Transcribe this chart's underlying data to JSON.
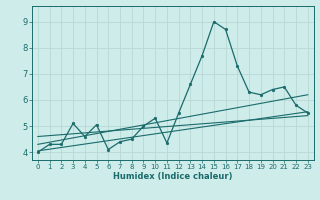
{
  "xlabel": "Humidex (Indice chaleur)",
  "bg_color": "#ceecea",
  "grid_color": "#b8d8d6",
  "line_color": "#1a6b6b",
  "xlim": [
    -0.5,
    23.5
  ],
  "ylim": [
    3.7,
    9.6
  ],
  "xticks": [
    0,
    1,
    2,
    3,
    4,
    5,
    6,
    7,
    8,
    9,
    10,
    11,
    12,
    13,
    14,
    15,
    16,
    17,
    18,
    19,
    20,
    21,
    22,
    23
  ],
  "yticks": [
    4,
    5,
    6,
    7,
    8,
    9
  ],
  "main_x": [
    0,
    1,
    2,
    3,
    4,
    5,
    6,
    7,
    8,
    9,
    10,
    11,
    12,
    13,
    14,
    15,
    16,
    17,
    18,
    19,
    20,
    21,
    22,
    23
  ],
  "main_y": [
    4.0,
    4.3,
    4.3,
    5.1,
    4.6,
    5.05,
    4.1,
    4.4,
    4.5,
    5.0,
    5.3,
    4.35,
    5.5,
    6.6,
    7.7,
    9.0,
    8.7,
    7.3,
    6.3,
    6.2,
    6.4,
    6.5,
    5.8,
    5.5
  ],
  "trend1_x": [
    0,
    23
  ],
  "trend1_y": [
    4.05,
    5.55
  ],
  "trend2_x": [
    0,
    23
  ],
  "trend2_y": [
    4.3,
    6.2
  ],
  "trend3_x": [
    0,
    23
  ],
  "trend3_y": [
    4.6,
    5.4
  ]
}
